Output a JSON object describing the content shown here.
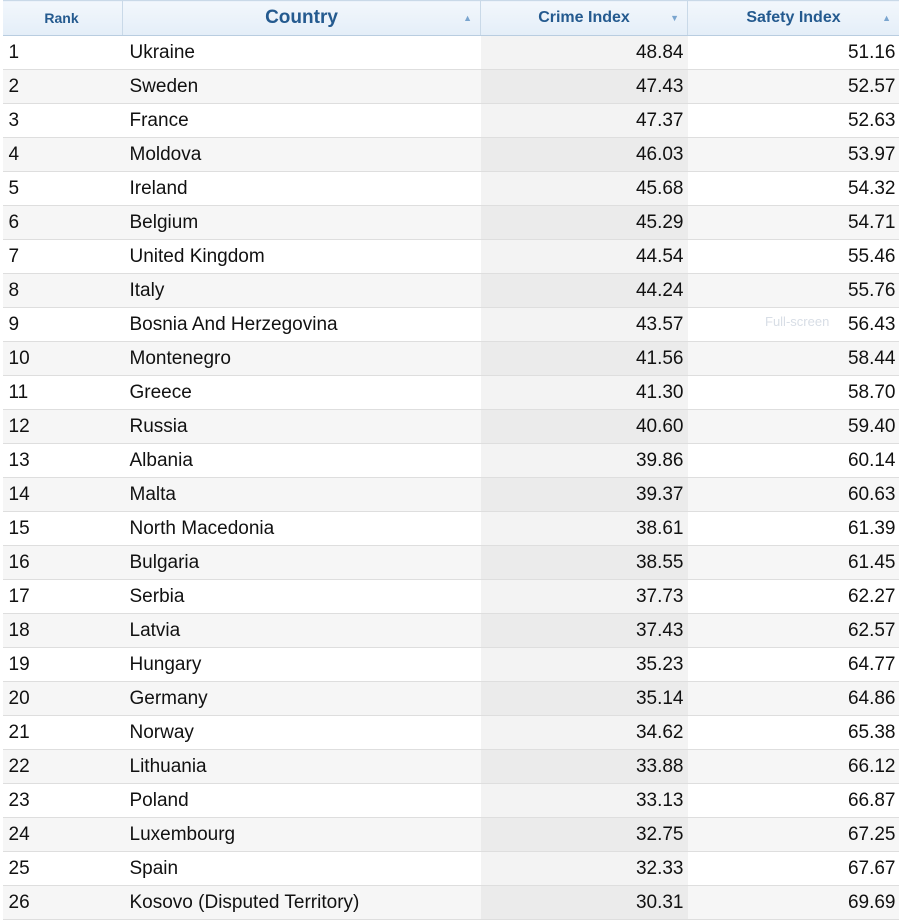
{
  "headers": {
    "rank": "Rank",
    "country": "Country",
    "crime_index": "Crime Index",
    "safety_index": "Safety Index"
  },
  "sort_icons": {
    "country": "▲",
    "crime_index": "▼",
    "safety_index": "▲"
  },
  "overlay_text": "Full-screen",
  "rows": [
    {
      "rank": "1",
      "country": "Ukraine",
      "crime": "48.84",
      "safety": "51.16"
    },
    {
      "rank": "2",
      "country": "Sweden",
      "crime": "47.43",
      "safety": "52.57"
    },
    {
      "rank": "3",
      "country": "France",
      "crime": "47.37",
      "safety": "52.63"
    },
    {
      "rank": "4",
      "country": "Moldova",
      "crime": "46.03",
      "safety": "53.97"
    },
    {
      "rank": "5",
      "country": "Ireland",
      "crime": "45.68",
      "safety": "54.32"
    },
    {
      "rank": "6",
      "country": "Belgium",
      "crime": "45.29",
      "safety": "54.71"
    },
    {
      "rank": "7",
      "country": "United Kingdom",
      "crime": "44.54",
      "safety": "55.46"
    },
    {
      "rank": "8",
      "country": "Italy",
      "crime": "44.24",
      "safety": "55.76"
    },
    {
      "rank": "9",
      "country": "Bosnia And Herzegovina",
      "crime": "43.57",
      "safety": "56.43"
    },
    {
      "rank": "10",
      "country": "Montenegro",
      "crime": "41.56",
      "safety": "58.44"
    },
    {
      "rank": "11",
      "country": "Greece",
      "crime": "41.30",
      "safety": "58.70"
    },
    {
      "rank": "12",
      "country": "Russia",
      "crime": "40.60",
      "safety": "59.40"
    },
    {
      "rank": "13",
      "country": "Albania",
      "crime": "39.86",
      "safety": "60.14"
    },
    {
      "rank": "14",
      "country": "Malta",
      "crime": "39.37",
      "safety": "60.63"
    },
    {
      "rank": "15",
      "country": "North Macedonia",
      "crime": "38.61",
      "safety": "61.39"
    },
    {
      "rank": "16",
      "country": "Bulgaria",
      "crime": "38.55",
      "safety": "61.45"
    },
    {
      "rank": "17",
      "country": "Serbia",
      "crime": "37.73",
      "safety": "62.27"
    },
    {
      "rank": "18",
      "country": "Latvia",
      "crime": "37.43",
      "safety": "62.57"
    },
    {
      "rank": "19",
      "country": "Hungary",
      "crime": "35.23",
      "safety": "64.77"
    },
    {
      "rank": "20",
      "country": "Germany",
      "crime": "35.14",
      "safety": "64.86"
    },
    {
      "rank": "21",
      "country": "Norway",
      "crime": "34.62",
      "safety": "65.38"
    },
    {
      "rank": "22",
      "country": "Lithuania",
      "crime": "33.88",
      "safety": "66.12"
    },
    {
      "rank": "23",
      "country": "Poland",
      "crime": "33.13",
      "safety": "66.87"
    },
    {
      "rank": "24",
      "country": "Luxembourg",
      "crime": "32.75",
      "safety": "67.25"
    },
    {
      "rank": "25",
      "country": "Spain",
      "crime": "32.33",
      "safety": "67.67"
    },
    {
      "rank": "26",
      "country": "Kosovo (Disputed Territory)",
      "crime": "30.31",
      "safety": "69.69"
    }
  ]
}
